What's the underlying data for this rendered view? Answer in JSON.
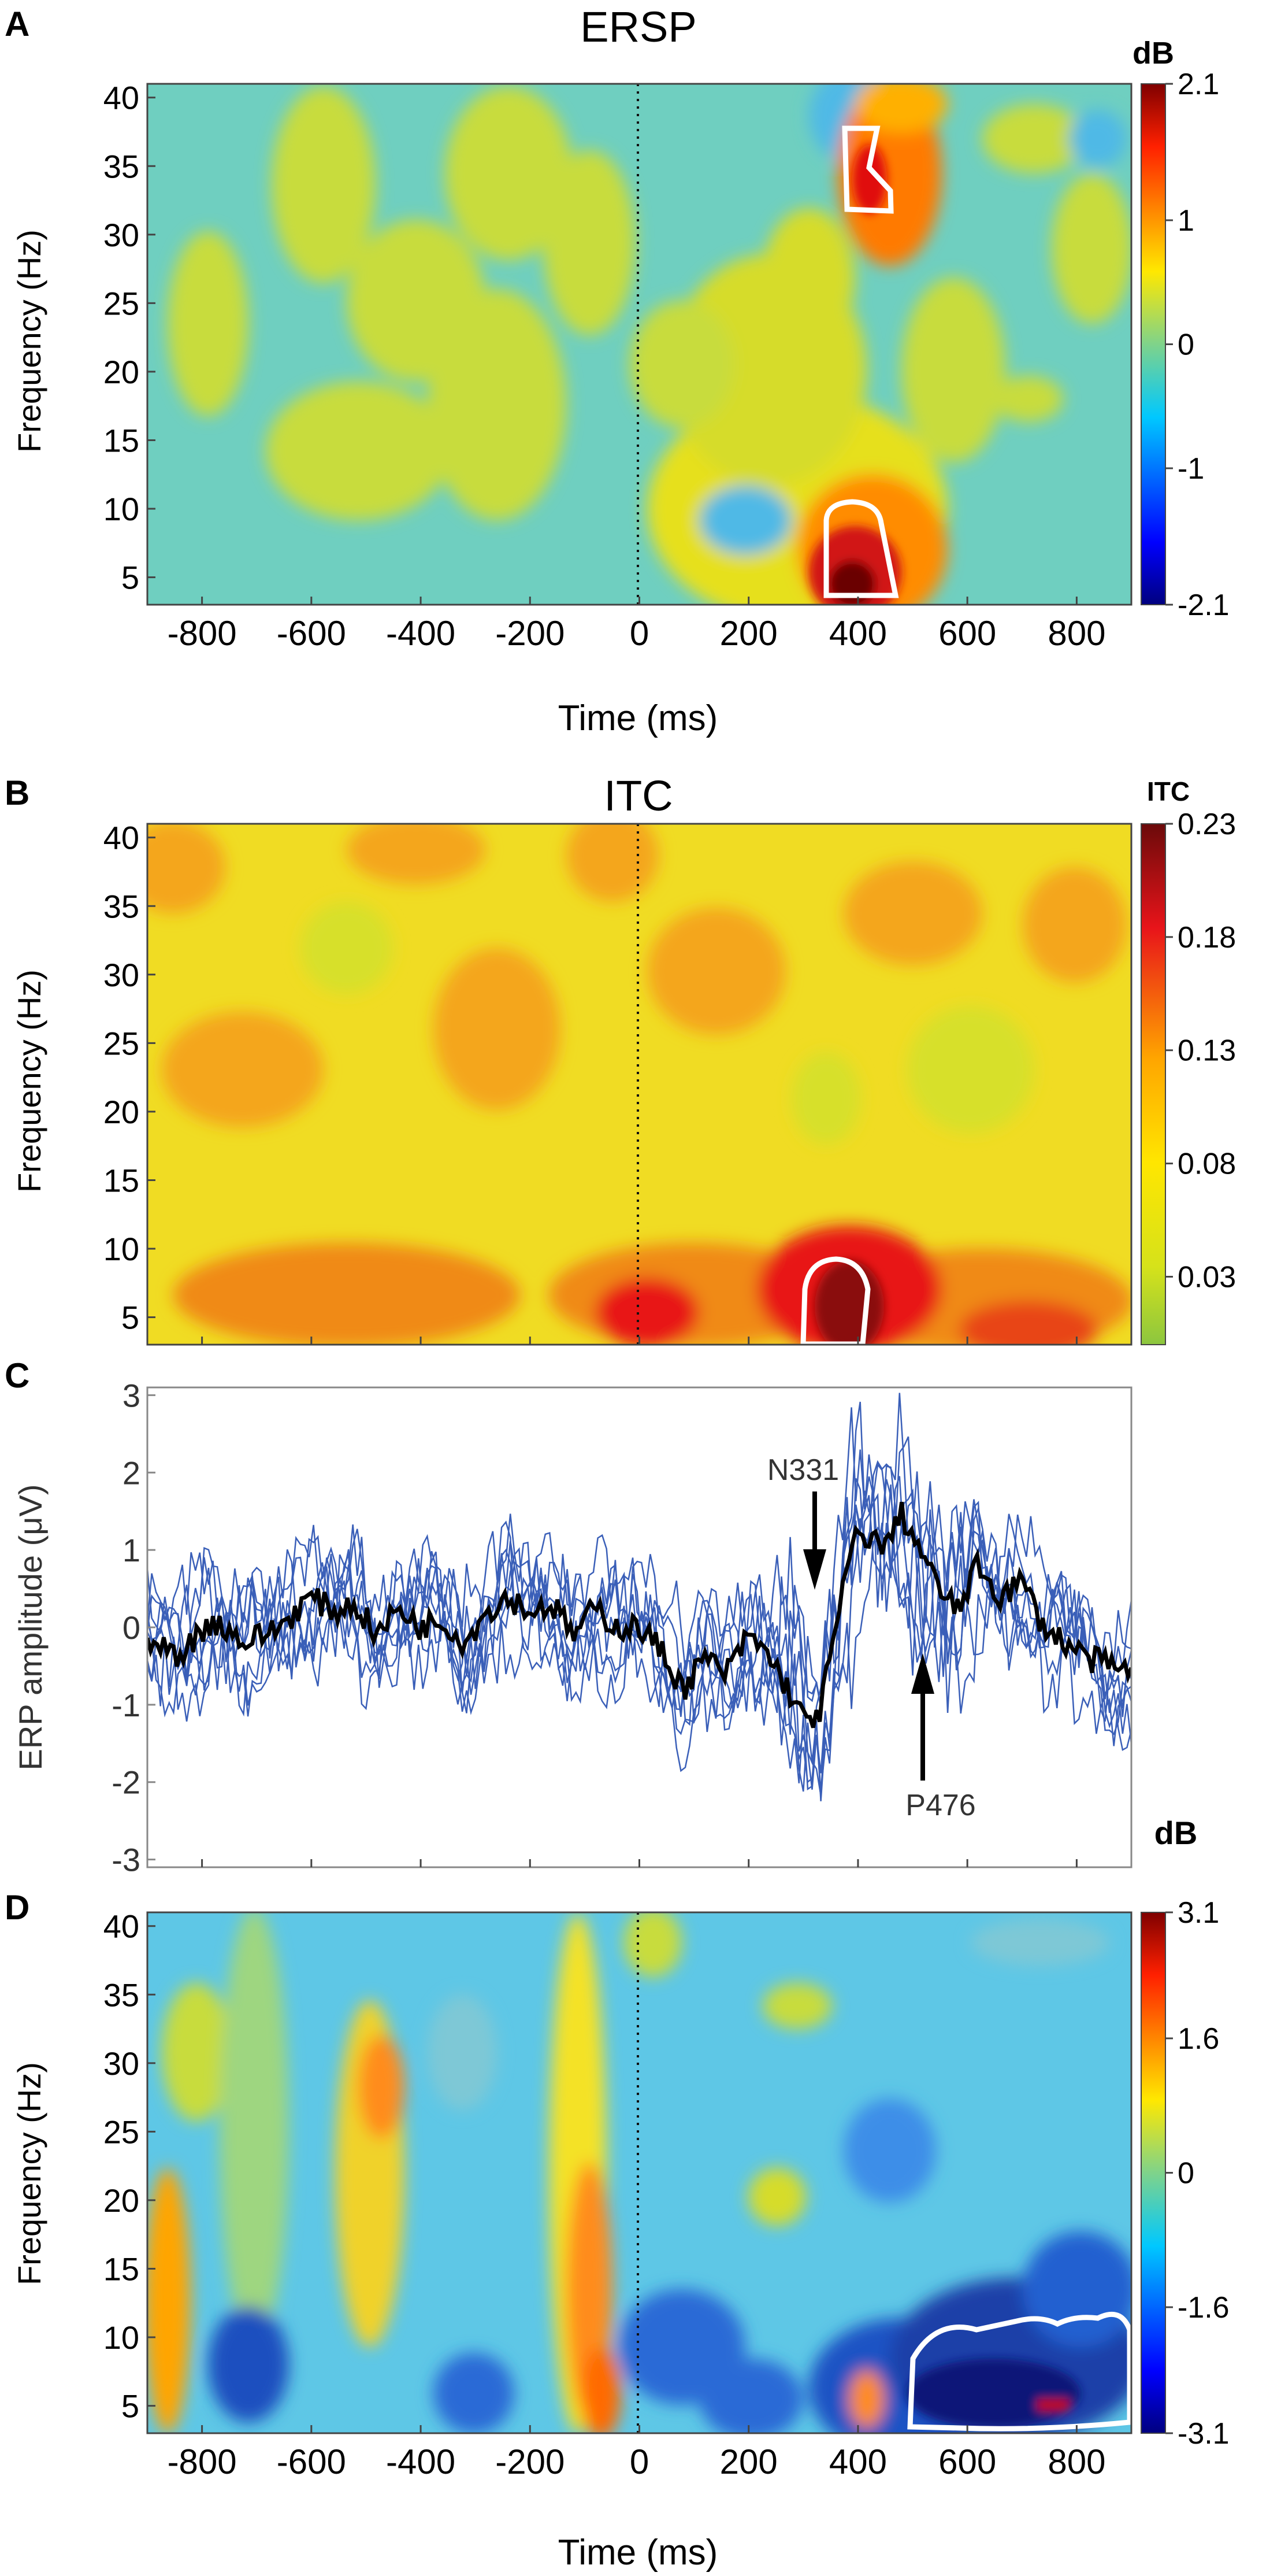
{
  "figure": {
    "panels": [
      {
        "letter": "A",
        "title": "ERSP",
        "colorbar_title": "dB",
        "colorbar_ticks": [
          "2.1",
          "1",
          "0",
          "-1",
          "-2.1"
        ],
        "x_ticks": [
          "-800",
          "-600",
          "-400",
          "-200",
          "0",
          "200",
          "400",
          "600",
          "800"
        ],
        "y_ticks": [
          "40",
          "35",
          "30",
          "25",
          "20",
          "15",
          "10",
          "5"
        ],
        "xlabel": "Time (ms)",
        "ylabel": "Frequency (Hz)"
      },
      {
        "letter": "B",
        "title": "ITC",
        "colorbar_title": "ITC",
        "colorbar_ticks": [
          "0.23",
          "0.18",
          "0.13",
          "0.08",
          "0.03"
        ],
        "y_ticks": [
          "40",
          "35",
          "30",
          "25",
          "20",
          "15",
          "10",
          "5"
        ],
        "ylabel": "Frequency (Hz)"
      },
      {
        "letter": "C",
        "ylabel": "ERP amplitude (μV)",
        "y_ticks": [
          "3",
          "2",
          "1",
          "0",
          "-1",
          "-2",
          "-3"
        ],
        "annotations": [
          "N331",
          "P476"
        ]
      },
      {
        "letter": "D",
        "colorbar_title": "dB",
        "colorbar_ticks": [
          "3.1",
          "1.6",
          "0",
          "-1.6",
          "-3.1"
        ],
        "x_ticks": [
          "-800",
          "-600",
          "-400",
          "-200",
          "0",
          "200",
          "400",
          "600",
          "800"
        ],
        "y_ticks": [
          "40",
          "35",
          "30",
          "25",
          "20",
          "15",
          "10",
          "5"
        ],
        "xlabel": "Time (ms)",
        "ylabel": "Frequency (Hz)"
      }
    ]
  },
  "chart_data": [
    {
      "type": "heatmap",
      "panel": "A",
      "title": "ERSP",
      "xlabel": "Time (ms)",
      "ylabel": "Frequency (Hz)",
      "xlim": [
        -900,
        900
      ],
      "ylim": [
        3,
        41
      ],
      "clim": [
        -2.1,
        2.1
      ],
      "unit": "dB",
      "stimulus_onset_ms": 0,
      "features": [
        {
          "t": 380,
          "f": 6,
          "value": 2.1,
          "label": "significant increase"
        },
        {
          "t": 420,
          "f": 32,
          "value": 1.7,
          "label": "significant increase"
        }
      ]
    },
    {
      "type": "heatmap",
      "panel": "B",
      "title": "ITC",
      "xlabel": "Time (ms)",
      "ylabel": "Frequency (Hz)",
      "xlim": [
        -900,
        900
      ],
      "ylim": [
        3,
        41
      ],
      "clim": [
        0,
        0.23
      ],
      "unit": "ITC",
      "stimulus_onset_ms": 0,
      "features": [
        {
          "t": 330,
          "f": 6,
          "value": 0.23,
          "label": "significant ITC"
        }
      ]
    },
    {
      "type": "line",
      "panel": "C",
      "xlabel": "Time (ms)",
      "ylabel": "ERP amplitude (μV)",
      "xlim": [
        -900,
        900
      ],
      "ylim": [
        -3.1,
        3.1
      ],
      "mean_series": {
        "x": [
          -900,
          -840,
          -780,
          -720,
          -660,
          -600,
          -560,
          -520,
          -480,
          -440,
          -400,
          -360,
          -320,
          -280,
          -240,
          -200,
          -160,
          -120,
          -80,
          -40,
          0,
          40,
          80,
          120,
          160,
          200,
          240,
          280,
          300,
          330,
          360,
          390,
          420,
          450,
          476,
          500,
          540,
          580,
          620,
          660,
          700,
          740,
          780,
          820,
          860,
          900
        ],
        "y": [
          -0.2,
          -0.35,
          0.1,
          -0.2,
          0.0,
          0.4,
          0.2,
          0.3,
          -0.1,
          0.25,
          0.0,
          0.1,
          -0.2,
          0.2,
          0.4,
          0.2,
          0.3,
          -0.1,
          0.25,
          0.0,
          0.0,
          -0.3,
          -0.8,
          -0.4,
          -0.6,
          -0.1,
          -0.4,
          -0.9,
          -1.2,
          -1.1,
          0.0,
          1.1,
          1.2,
          1.0,
          1.5,
          1.2,
          0.6,
          0.2,
          0.8,
          0.4,
          0.6,
          0.0,
          -0.2,
          -0.4,
          -0.5,
          -0.6
        ]
      },
      "individual_series_count": 8,
      "annotations": [
        {
          "label": "N331",
          "t": 331,
          "value": -1.2
        },
        {
          "label": "P476",
          "t": 476,
          "value": 1.5
        }
      ]
    },
    {
      "type": "heatmap",
      "panel": "D",
      "xlabel": "Time (ms)",
      "ylabel": "Frequency (Hz)",
      "xlim": [
        -900,
        900
      ],
      "ylim": [
        3,
        41
      ],
      "clim": [
        -3.1,
        3.1
      ],
      "unit": "dB",
      "stimulus_onset_ms": 0,
      "features": [
        {
          "t": 680,
          "f": 7,
          "value": -3.1,
          "label": "significant decrease"
        }
      ]
    }
  ]
}
